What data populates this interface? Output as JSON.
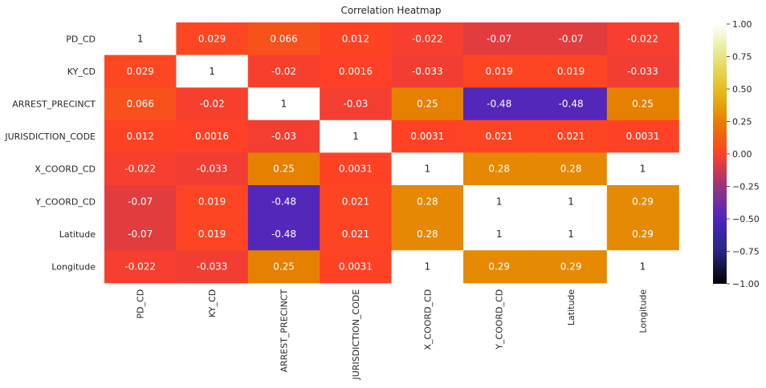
{
  "chart_data": {
    "type": "heatmap",
    "title": "Correlation Heatmap",
    "rows": [
      "PD_CD",
      "KY_CD",
      "ARREST_PRECINCT",
      "JURISDICTION_CODE",
      "X_COORD_CD",
      "Y_COORD_CD",
      "Latitude",
      "Longitude"
    ],
    "columns": [
      "PD_CD",
      "KY_CD",
      "ARREST_PRECINCT",
      "JURISDICTION_CODE",
      "X_COORD_CD",
      "Y_COORD_CD",
      "Latitude",
      "Longitude"
    ],
    "values": [
      [
        1,
        0.029,
        0.066,
        0.012,
        -0.022,
        -0.07,
        -0.07,
        -0.022
      ],
      [
        0.029,
        1,
        -0.02,
        0.0016,
        -0.033,
        0.019,
        0.019,
        -0.033
      ],
      [
        0.066,
        -0.02,
        1,
        -0.03,
        0.25,
        -0.48,
        -0.48,
        0.25
      ],
      [
        0.012,
        0.0016,
        -0.03,
        1,
        0.0031,
        0.021,
        0.021,
        0.0031
      ],
      [
        -0.022,
        -0.033,
        0.25,
        0.0031,
        1,
        0.28,
        0.28,
        1
      ],
      [
        -0.07,
        0.019,
        -0.48,
        0.021,
        0.28,
        1,
        1,
        0.29
      ],
      [
        -0.07,
        0.019,
        -0.48,
        0.021,
        0.28,
        1,
        1,
        0.29
      ],
      [
        -0.022,
        -0.033,
        0.25,
        0.0031,
        1,
        0.29,
        0.29,
        1
      ]
    ],
    "annotations": [
      [
        "1",
        "0.029",
        "0.066",
        "0.012",
        "-0.022",
        "-0.07",
        "-0.07",
        "-0.022"
      ],
      [
        "0.029",
        "1",
        "-0.02",
        "0.0016",
        "-0.033",
        "0.019",
        "0.019",
        "-0.033"
      ],
      [
        "0.066",
        "-0.02",
        "1",
        "-0.03",
        "0.25",
        "-0.48",
        "-0.48",
        "0.25"
      ],
      [
        "0.012",
        "0.0016",
        "-0.03",
        "1",
        "0.0031",
        "0.021",
        "0.021",
        "0.0031"
      ],
      [
        "-0.022",
        "-0.033",
        "0.25",
        "0.0031",
        "1",
        "0.28",
        "0.28",
        "1"
      ],
      [
        "-0.07",
        "0.019",
        "-0.48",
        "0.021",
        "0.28",
        "1",
        "1",
        "0.29"
      ],
      [
        "-0.07",
        "0.019",
        "-0.48",
        "0.021",
        "0.28",
        "1",
        "1",
        "0.29"
      ],
      [
        "-0.022",
        "-0.033",
        "0.25",
        "0.0031",
        "1",
        "0.29",
        "0.29",
        "1"
      ]
    ],
    "colormap": "CMRmap",
    "vmin": -1,
    "vmax": 1,
    "colorbar_ticks": [
      "1.00",
      "0.75",
      "0.50",
      "0.25",
      "0.00",
      "−0.25",
      "−0.50",
      "−0.75",
      "−1.00"
    ],
    "colorbar_tick_values": [
      1,
      0.75,
      0.5,
      0.25,
      0,
      -0.25,
      -0.5,
      -0.75,
      -1
    ],
    "colorbar_placement": "right",
    "grid": false
  }
}
